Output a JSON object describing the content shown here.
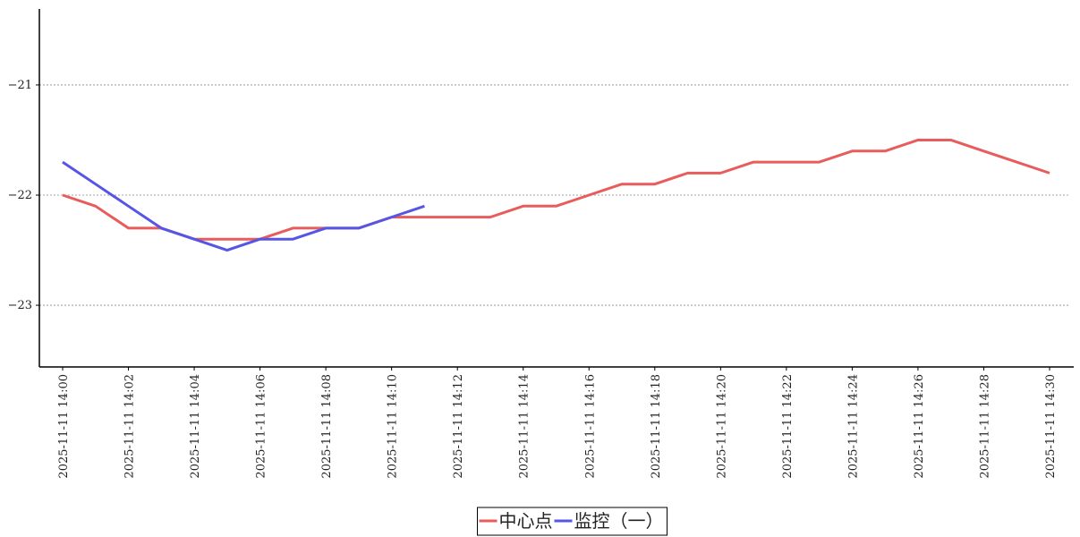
{
  "chart_data": {
    "type": "line",
    "categories": [
      "2025-11-11 14:00",
      null,
      "2025-11-11 14:02",
      null,
      "2025-11-11 14:04",
      null,
      "2025-11-11 14:06",
      null,
      "2025-11-11 14:08",
      null,
      "2025-11-11 14:10",
      null,
      "2025-11-11 14:12",
      null,
      "2025-11-11 14:14",
      null,
      "2025-11-11 14:16",
      null,
      "2025-11-11 14:18",
      null,
      "2025-11-11 14:20",
      null,
      "2025-11-11 14:22",
      null,
      "2025-11-11 14:24",
      null,
      "2025-11-11 14:26",
      null,
      "2025-11-11 14:28",
      null,
      "2025-11-11 14:30"
    ],
    "series": [
      {
        "name": "中心点",
        "color": "#e85c5c",
        "values": [
          -22.0,
          -22.1,
          -22.3,
          -22.3,
          -22.4,
          -22.4,
          -22.4,
          -22.3,
          -22.3,
          -22.3,
          -22.2,
          -22.2,
          -22.2,
          -22.2,
          -22.1,
          -22.1,
          -22.0,
          -21.9,
          -21.9,
          -21.8,
          -21.8,
          -21.7,
          -21.7,
          -21.7,
          -21.6,
          -21.6,
          -21.5,
          -21.5,
          -21.6,
          -21.7,
          -21.8
        ]
      },
      {
        "name": "监控（一）",
        "color": "#5555e6",
        "values": [
          -21.7,
          -21.9,
          -22.1,
          -22.3,
          -22.4,
          -22.5,
          -22.4,
          -22.4,
          -22.3,
          -22.3,
          -22.2,
          -22.1,
          null,
          null,
          null,
          null,
          null,
          null,
          null,
          null,
          null,
          null,
          null,
          null,
          null,
          null,
          null,
          null,
          null,
          null,
          null
        ]
      }
    ],
    "ylim": [
      -23.56,
      -20.31
    ],
    "yticks": [
      {
        "value": -21,
        "label": "−21"
      },
      {
        "value": -22,
        "label": "−22"
      },
      {
        "value": -23,
        "label": "−23"
      }
    ],
    "grid": true,
    "legend": "bottom"
  }
}
